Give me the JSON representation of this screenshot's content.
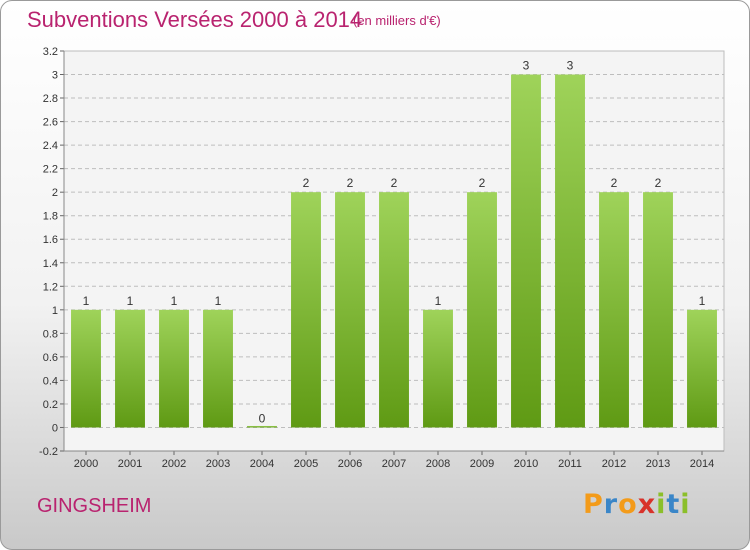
{
  "header": {
    "title": "Subventions Versées 2000 à 2014",
    "unit_note": "(en milliers d'€)"
  },
  "footer": {
    "commune": "GINGSHEIM",
    "brand": {
      "letters": [
        "P",
        "r",
        "o",
        "x",
        "i",
        "t",
        "i"
      ]
    }
  },
  "colors": {
    "title": "#b9236f",
    "bar_top": "#9fd35a",
    "bar_bottom": "#5f9a14",
    "brand_letters": [
      "#f39b1a",
      "#3a86c8",
      "#f39b1a",
      "#d8322a",
      "#8bbf2a",
      "#3a86c8",
      "#8bbf2a"
    ]
  },
  "chart_data": {
    "type": "bar",
    "title": "Subventions Versées 2000 à 2014",
    "subtitle": "(en milliers d'€)",
    "xlabel": "",
    "ylabel": "",
    "categories": [
      "2000",
      "2001",
      "2002",
      "2003",
      "2004",
      "2005",
      "2006",
      "2007",
      "2008",
      "2009",
      "2010",
      "2011",
      "2012",
      "2013",
      "2014"
    ],
    "values": [
      1,
      1,
      1,
      1,
      0,
      2,
      2,
      2,
      1,
      2,
      3,
      3,
      2,
      2,
      1
    ],
    "data_labels": [
      "1",
      "1",
      "1",
      "1",
      "0",
      "2",
      "2",
      "2",
      "1",
      "2",
      "3",
      "3",
      "2",
      "2",
      "1"
    ],
    "ylim": [
      -0.2,
      3.2
    ],
    "yticks": [
      -0.2,
      0,
      0.2,
      0.4,
      0.6,
      0.8,
      1,
      1.2,
      1.4,
      1.6,
      1.8,
      2,
      2.2,
      2.4,
      2.6,
      2.8,
      3,
      3.2
    ],
    "ytick_labels": [
      "-0.2",
      "0",
      "0.2",
      "0.4",
      "0.6",
      "0.8",
      "1",
      "1.2",
      "1.4",
      "1.6",
      "1.8",
      "2",
      "2.2",
      "2.4",
      "2.6",
      "2.8",
      "3",
      "3.2"
    ],
    "grid": true,
    "legend": "none"
  }
}
